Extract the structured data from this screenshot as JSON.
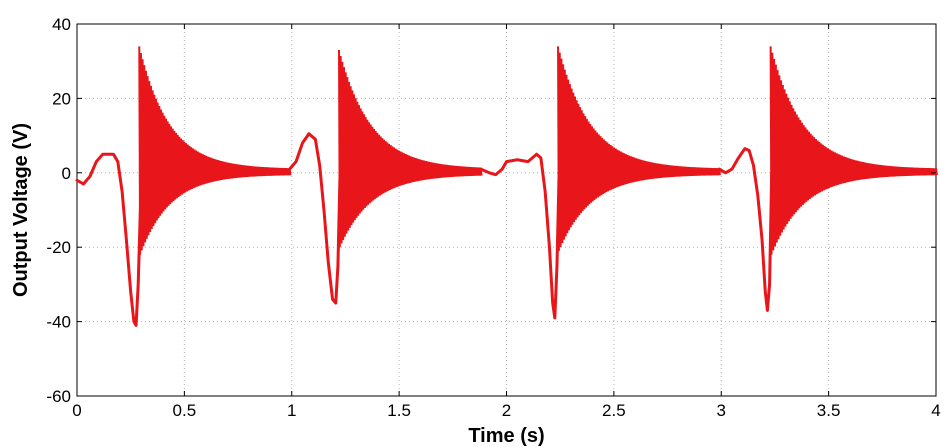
{
  "chart_data": {
    "type": "line",
    "title": "",
    "xlabel": "Time (s)",
    "ylabel": "Output Voltage (V)",
    "xlim": [
      0,
      4
    ],
    "ylim": [
      -60,
      40
    ],
    "xticks": [
      0,
      0.5,
      1,
      1.5,
      2,
      2.5,
      3,
      3.5,
      4
    ],
    "xtick_labels": [
      "0",
      "0.5",
      "1",
      "1.5",
      "2",
      "2.5",
      "3",
      "3.5",
      "4"
    ],
    "yticks": [
      -60,
      -40,
      -20,
      0,
      20,
      40
    ],
    "ytick_labels": [
      "-60",
      "-40",
      "-20",
      "0",
      "20",
      "40"
    ],
    "grid": true,
    "legend": "none",
    "series_color": "#e8161b",
    "series": [
      {
        "style": "slow-wave",
        "points": [
          [
            0,
            -2
          ],
          [
            0.03,
            -3
          ],
          [
            0.06,
            -1
          ],
          [
            0.09,
            3
          ],
          [
            0.12,
            5
          ],
          [
            0.15,
            5
          ],
          [
            0.17,
            5
          ],
          [
            0.19,
            3
          ],
          [
            0.21,
            -5
          ],
          [
            0.23,
            -18
          ],
          [
            0.25,
            -32
          ],
          [
            0.265,
            -40
          ],
          [
            0.275,
            -41
          ],
          [
            0.285,
            -30
          ],
          [
            0.3,
            0
          ]
        ]
      },
      {
        "style": "oscillation",
        "t_start": 0.29,
        "t_end": 0.99,
        "env_pos_start": 34,
        "env_pos_end": 1,
        "env_neg_start": -22,
        "env_neg_end": -0.5,
        "decay_time": 0.14,
        "cycles": 90
      },
      {
        "style": "slow-wave",
        "points": [
          [
            0.99,
            1
          ],
          [
            1.02,
            3
          ],
          [
            1.05,
            8
          ],
          [
            1.08,
            10.5
          ],
          [
            1.11,
            9
          ],
          [
            1.13,
            2
          ],
          [
            1.15,
            -10
          ],
          [
            1.17,
            -24
          ],
          [
            1.19,
            -34
          ],
          [
            1.205,
            -35
          ],
          [
            1.215,
            -25
          ],
          [
            1.225,
            0
          ]
        ]
      },
      {
        "style": "oscillation",
        "t_start": 1.22,
        "t_end": 1.88,
        "env_pos_start": 33,
        "env_pos_end": 1,
        "env_neg_start": -20,
        "env_neg_end": -0.5,
        "decay_time": 0.15,
        "cycles": 85
      },
      {
        "style": "slow-wave",
        "points": [
          [
            1.88,
            1
          ],
          [
            1.92,
            0
          ],
          [
            1.95,
            -0.5
          ],
          [
            1.98,
            1
          ],
          [
            2.0,
            3
          ],
          [
            2.05,
            3.5
          ],
          [
            2.1,
            3
          ],
          [
            2.14,
            5
          ],
          [
            2.16,
            4
          ],
          [
            2.18,
            -5
          ],
          [
            2.2,
            -20
          ],
          [
            2.215,
            -35
          ],
          [
            2.225,
            -39
          ],
          [
            2.235,
            -25
          ],
          [
            2.245,
            0
          ]
        ]
      },
      {
        "style": "oscillation",
        "t_start": 2.24,
        "t_end": 2.99,
        "env_pos_start": 34,
        "env_pos_end": 1,
        "env_neg_start": -21,
        "env_neg_end": -0.5,
        "decay_time": 0.15,
        "cycles": 95
      },
      {
        "style": "slow-wave",
        "points": [
          [
            2.99,
            1
          ],
          [
            3.02,
            0
          ],
          [
            3.05,
            1
          ],
          [
            3.08,
            4
          ],
          [
            3.11,
            6.5
          ],
          [
            3.13,
            6
          ],
          [
            3.15,
            2
          ],
          [
            3.17,
            -6
          ],
          [
            3.19,
            -18
          ],
          [
            3.205,
            -32
          ],
          [
            3.215,
            -37
          ],
          [
            3.225,
            -30
          ],
          [
            3.235,
            0
          ]
        ]
      },
      {
        "style": "oscillation",
        "t_start": 3.23,
        "t_end": 4.0,
        "env_pos_start": 34,
        "env_pos_end": 1,
        "env_neg_start": -22,
        "env_neg_end": -0.5,
        "decay_time": 0.15,
        "cycles": 95
      }
    ]
  }
}
